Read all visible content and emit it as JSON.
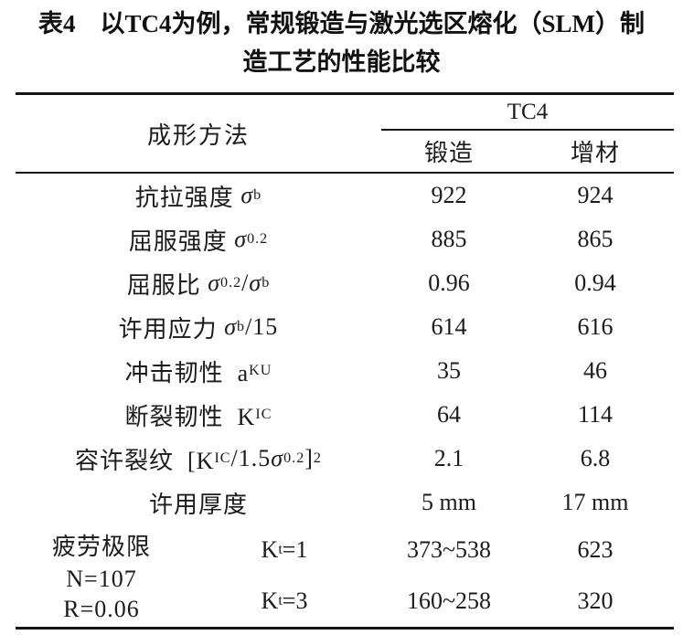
{
  "colors": {
    "background": "#ffffff",
    "text": "#1b1b1b",
    "rule": "#151515"
  },
  "caption": {
    "line1": "表4　以TC4为例，常规锻造与激光选区熔化（SLM）制",
    "line2": "造工艺的性能比较"
  },
  "table": {
    "header": {
      "method": "成形方法",
      "group": "TC4",
      "col_forged": "锻造",
      "col_additive": "增材"
    },
    "rows": [
      {
        "label": [
          {
            "t": "抗拉强度 "
          },
          {
            "t": "σ",
            "i": 1
          },
          {
            "t": "b",
            "sub": 1
          }
        ],
        "forged": "922",
        "additive": "924"
      },
      {
        "label": [
          {
            "t": "屈服强度 "
          },
          {
            "t": "σ",
            "i": 1
          },
          {
            "t": "0.2",
            "sub": 1
          }
        ],
        "forged": "885",
        "additive": "865"
      },
      {
        "label": [
          {
            "t": "屈服比 "
          },
          {
            "t": "σ",
            "i": 1
          },
          {
            "t": "0.2",
            "sub": 1
          },
          {
            "t": "/"
          },
          {
            "t": "σ",
            "i": 1
          },
          {
            "t": "b",
            "sub": 1
          }
        ],
        "forged": "0.96",
        "additive": "0.94"
      },
      {
        "label": [
          {
            "t": "许用应力 "
          },
          {
            "t": "σ",
            "i": 1
          },
          {
            "t": "b",
            "sub": 1
          },
          {
            "t": "/15"
          }
        ],
        "forged": "614",
        "additive": "616"
      },
      {
        "label": [
          {
            "t": "冲击韧性  a"
          },
          {
            "t": "KU",
            "sub": 1
          }
        ],
        "forged": "35",
        "additive": "46"
      },
      {
        "label": [
          {
            "t": "断裂韧性  K"
          },
          {
            "t": "IC",
            "sub": 1
          }
        ],
        "forged": "64",
        "additive": "114"
      },
      {
        "label": [
          {
            "t": "容许裂纹  [K"
          },
          {
            "t": "IC",
            "sub": 1
          },
          {
            "t": "/1.5"
          },
          {
            "t": "σ",
            "i": 1
          },
          {
            "t": "0.2",
            "sub": 1
          },
          {
            "t": "]"
          },
          {
            "t": "2",
            "sup": 1
          }
        ],
        "forged": "2.1",
        "additive": "6.8"
      },
      {
        "label": [
          {
            "t": "许用厚度"
          }
        ],
        "forged": "5 mm",
        "additive": "17 mm"
      }
    ],
    "fatigue": {
      "labels": [
        "疲劳极限",
        "N=107",
        "R=0.06"
      ],
      "sub_rows": [
        {
          "kt": [
            {
              "t": "K"
            },
            {
              "t": "t",
              "sub": 1
            },
            {
              "t": "=1"
            }
          ],
          "forged": "373~538",
          "additive": "623"
        },
        {
          "kt": [
            {
              "t": "K"
            },
            {
              "t": "t",
              "sub": 1
            },
            {
              "t": "=3"
            }
          ],
          "forged": "160~258",
          "additive": "320"
        }
      ]
    }
  }
}
